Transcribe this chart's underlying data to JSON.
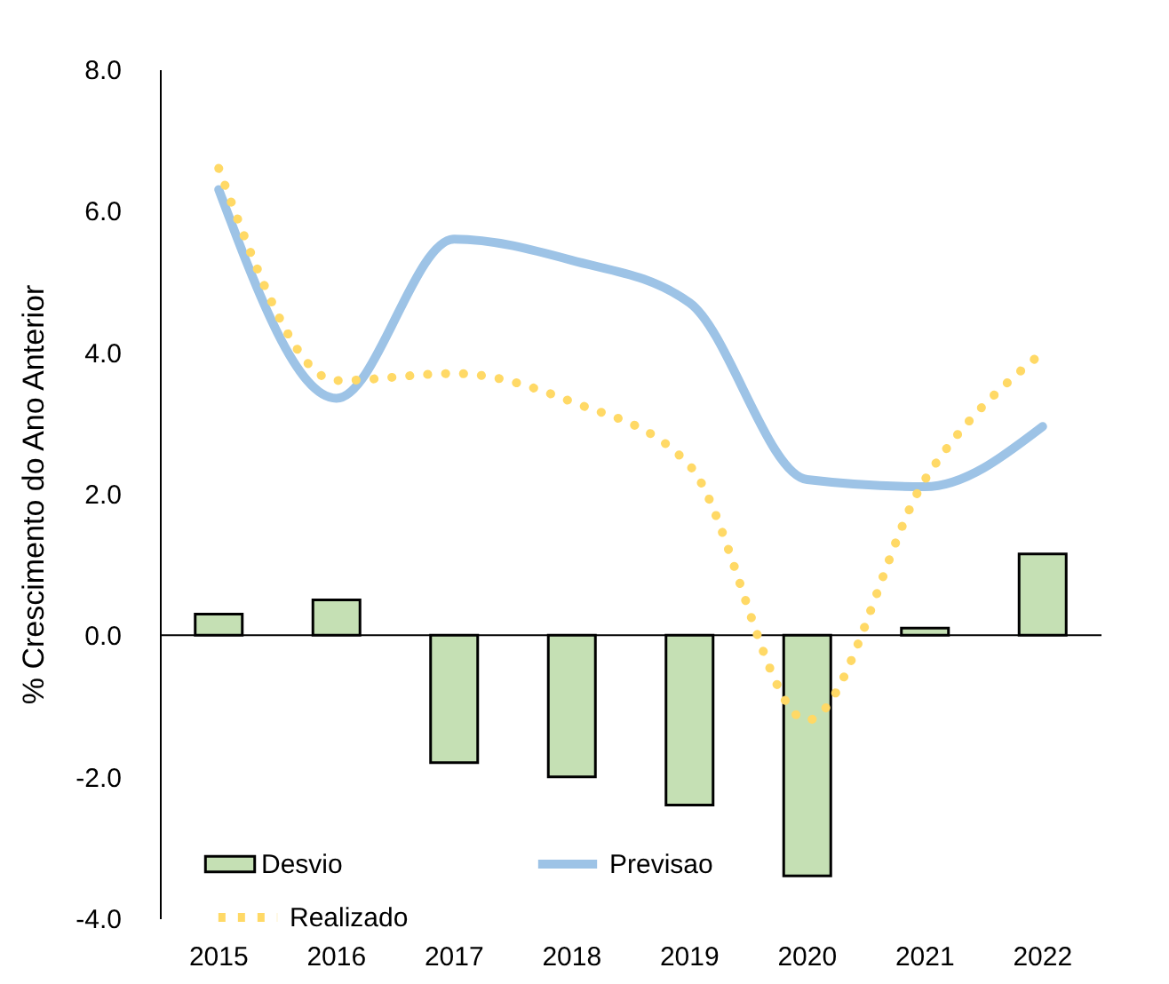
{
  "chart_data": {
    "type": "bar",
    "ylabel": "% Crescimento do Ano Anterior",
    "categories": [
      "2015",
      "2016",
      "2017",
      "2018",
      "2019",
      "2020",
      "2021",
      "2022"
    ],
    "series": [
      {
        "name": "Desvio",
        "color": "#c5e0b4",
        "values": [
          0.3,
          0.5,
          -1.8,
          -2.0,
          -2.4,
          -3.4,
          0.1,
          1.15
        ]
      },
      {
        "name": "Previsao",
        "type": "line",
        "color": "#9dc3e6",
        "line_style": "solid",
        "values": [
          6.3,
          3.35,
          5.6,
          5.3,
          4.7,
          2.2,
          2.1,
          2.95
        ]
      },
      {
        "name": "Realizado",
        "type": "line",
        "color": "#ffd966",
        "line_style": "dotted",
        "values": [
          6.6,
          3.6,
          3.7,
          3.3,
          2.4,
          -1.2,
          2.2,
          4.0
        ]
      }
    ],
    "ylim": [
      -4,
      8
    ],
    "yticks": [
      {
        "value": -4,
        "label": "-4.0"
      },
      {
        "value": -2,
        "label": "-2.0"
      },
      {
        "value": 0,
        "label": "0.0"
      },
      {
        "value": 2,
        "label": "2.0"
      },
      {
        "value": 4,
        "label": "4.0"
      },
      {
        "value": 6,
        "label": "6.0"
      },
      {
        "value": 8,
        "label": "8.0"
      }
    ],
    "ref_lines": [
      {
        "axis": "y",
        "value": 0,
        "color": "#000000"
      }
    ],
    "grid": false,
    "legend": "bottom left"
  }
}
